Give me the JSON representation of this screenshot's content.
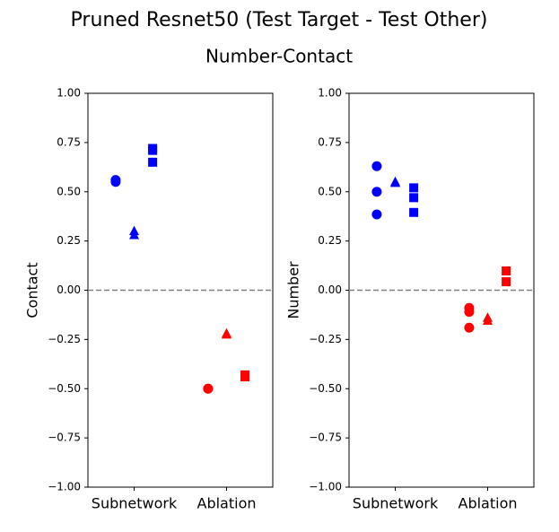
{
  "title": "Pruned Resnet50 (Test Target - Test Other)",
  "subtitle": "Number-Contact",
  "chart_data": [
    {
      "type": "scatter",
      "ylabel": "Contact",
      "categories": [
        "Subnetwork",
        "Ablation"
      ],
      "ylim": [
        -1,
        1
      ],
      "yticks": [
        {
          "value": -1,
          "label": "−1.00"
        },
        {
          "value": -0.75,
          "label": "−0.75"
        },
        {
          "value": -0.5,
          "label": "−0.50"
        },
        {
          "value": -0.25,
          "label": "−0.25"
        },
        {
          "value": 0,
          "label": "0.00"
        },
        {
          "value": 0.25,
          "label": "0.25"
        },
        {
          "value": 0.5,
          "label": "0.50"
        },
        {
          "value": 0.75,
          "label": "0.75"
        },
        {
          "value": 1,
          "label": "1.00"
        }
      ],
      "reference_line": 0,
      "category_colors": [
        "#0000ff",
        "#ff0000"
      ],
      "series": [
        {
          "marker": "circle",
          "values": [
            [
              0.56,
              0.55
            ],
            [
              -0.5,
              -0.5
            ]
          ]
        },
        {
          "marker": "triangle",
          "values": [
            [
              0.3,
              0.28
            ],
            [
              -0.22,
              -0.225
            ]
          ]
        },
        {
          "marker": "square",
          "values": [
            [
              0.72,
              0.71,
              0.65
            ],
            [
              -0.43,
              -0.44
            ]
          ]
        }
      ]
    },
    {
      "type": "scatter",
      "ylabel": "Number",
      "categories": [
        "Subnetwork",
        "Ablation"
      ],
      "ylim": [
        -1,
        1
      ],
      "yticks": [
        {
          "value": -1,
          "label": "−1.00"
        },
        {
          "value": -0.75,
          "label": "−0.75"
        },
        {
          "value": -0.5,
          "label": "−0.50"
        },
        {
          "value": -0.25,
          "label": "−0.25"
        },
        {
          "value": 0,
          "label": "0.00"
        },
        {
          "value": 0.25,
          "label": "0.25"
        },
        {
          "value": 0.5,
          "label": "0.50"
        },
        {
          "value": 0.75,
          "label": "0.75"
        },
        {
          "value": 1,
          "label": "1.00"
        }
      ],
      "reference_line": 0,
      "category_colors": [
        "#0000ff",
        "#ff0000"
      ],
      "series": [
        {
          "marker": "circle",
          "values": [
            [
              0.63,
              0.5,
              0.385
            ],
            [
              -0.09,
              -0.11,
              -0.19
            ]
          ]
        },
        {
          "marker": "triangle",
          "values": [
            [
              0.55,
              0.545
            ],
            [
              -0.14,
              -0.155
            ]
          ]
        },
        {
          "marker": "square",
          "values": [
            [
              0.52,
              0.47,
              0.395
            ],
            [
              0.098,
              0.043
            ]
          ]
        }
      ]
    }
  ]
}
